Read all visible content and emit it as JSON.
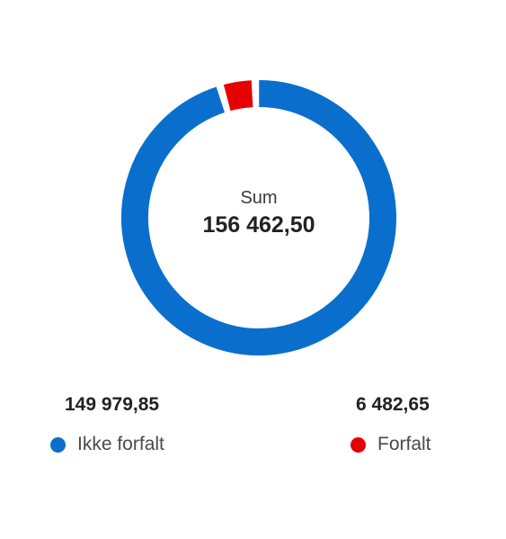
{
  "chart_data": {
    "type": "pie",
    "center": {
      "label": "Sum",
      "value": "156 462,50"
    },
    "series": [
      {
        "name": "Ikke forfalt",
        "value": 149979.85,
        "display": "149 979,85",
        "color": "#0a6fcc"
      },
      {
        "name": "Forfalt",
        "value": 6482.65,
        "display": "6 482,65",
        "color": "#e60000"
      }
    ],
    "legend_placement": "bottom"
  }
}
